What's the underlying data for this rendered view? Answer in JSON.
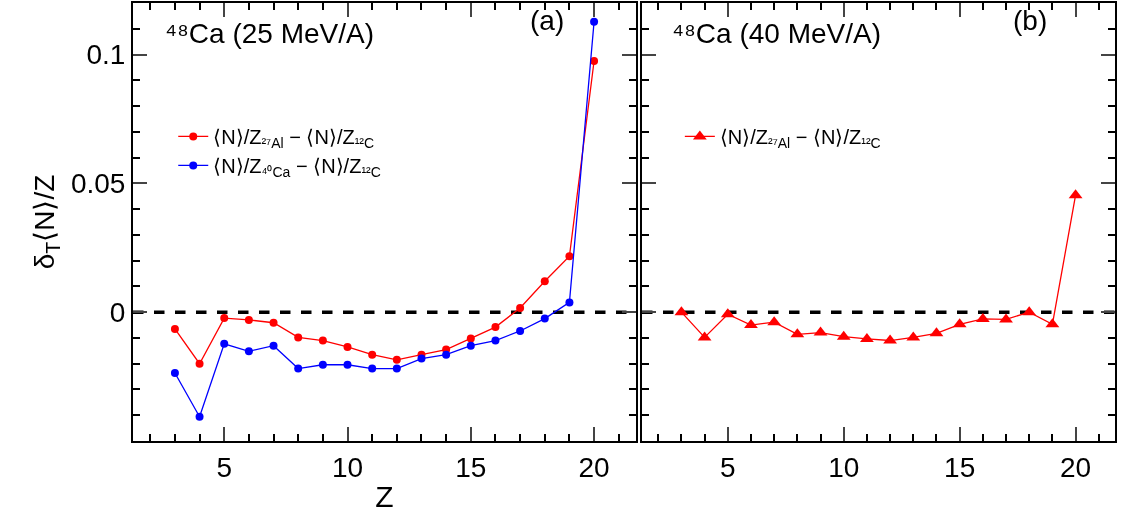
{
  "chart_data": [
    {
      "type": "line",
      "title": "⁴⁸Ca (25 MeV/A)",
      "annotations": [
        "(a)"
      ],
      "xlabel": "Z",
      "ylabel": "δ$_{T}$⟨N⟩/Z",
      "x": [
        3,
        4,
        5,
        6,
        7,
        8,
        9,
        10,
        11,
        12,
        13,
        14,
        15,
        16,
        17,
        18,
        19,
        20
      ],
      "series": [
        {
          "name": "⟨N⟩/Z$_{²⁷Al}$ − ⟨N⟩/Z$_{¹²C}$",
          "color": "#ff0000",
          "values": [
            -0.0065,
            -0.02,
            -0.0023,
            -0.003,
            -0.0041,
            -0.0098,
            -0.011,
            -0.0135,
            -0.0165,
            -0.0185,
            -0.0165,
            -0.0145,
            -0.0102,
            -0.0058,
            0.0016,
            0.012,
            0.0217,
            0.0975
          ]
        },
        {
          "name": "⟨N⟩/Z$_{⁴⁰Ca}$ − ⟨N⟩/Z$_{¹²C}$",
          "color": "#0000ff",
          "values": [
            -0.0236,
            -0.0406,
            -0.0123,
            -0.0152,
            -0.013,
            -0.0219,
            -0.0204,
            -0.0204,
            -0.0219,
            -0.0219,
            -0.018,
            -0.0165,
            -0.013,
            -0.011,
            -0.0073,
            -0.0025,
            0.0038,
            0.1127
          ]
        }
      ],
      "marker": "circle",
      "legend": "top left",
      "grid": false,
      "xlim": [
        1.3,
        21.7
      ],
      "xticks": [
        5,
        10,
        15,
        20
      ],
      "ylim": [
        -0.05,
        0.12
      ],
      "yticks": [
        0,
        0.05,
        0.1
      ],
      "ref_lines": [
        {
          "axis": "y",
          "value": 0,
          "color": "#000000",
          "line_style": "dashed"
        }
      ]
    },
    {
      "type": "line",
      "title": "⁴⁸Ca (40 MeV/A)",
      "annotations": [
        "(b)"
      ],
      "x": [
        3,
        4,
        5,
        6,
        7,
        8,
        9,
        10,
        11,
        12,
        13,
        14,
        15,
        16,
        17,
        18,
        19,
        20
      ],
      "series": [
        {
          "name": "⟨N⟩/Z$_{²⁷Al}$ − ⟨N⟩/Z$_{¹²C}$",
          "color": "#ff0000",
          "values": [
            0,
            -0.0098,
            -0.0008,
            -0.005,
            -0.0039,
            -0.0086,
            -0.0079,
            -0.0095,
            -0.0104,
            -0.011,
            -0.0098,
            -0.0082,
            -0.0047,
            -0.0026,
            -0.0028,
            0,
            -0.0047,
            0.0454
          ]
        }
      ],
      "marker": "triangle",
      "legend": "top left",
      "grid": false,
      "tick_labels": "x",
      "xlim": [
        1.3,
        21.7
      ],
      "xticks": [
        5,
        10,
        15,
        20
      ],
      "ylim": [
        -0.05,
        0.12
      ],
      "yticks": [
        0,
        0.05,
        0.1
      ],
      "ref_lines": [
        {
          "axis": "y",
          "value": 0,
          "color": "#000000",
          "line_style": "dashed"
        }
      ]
    }
  ]
}
